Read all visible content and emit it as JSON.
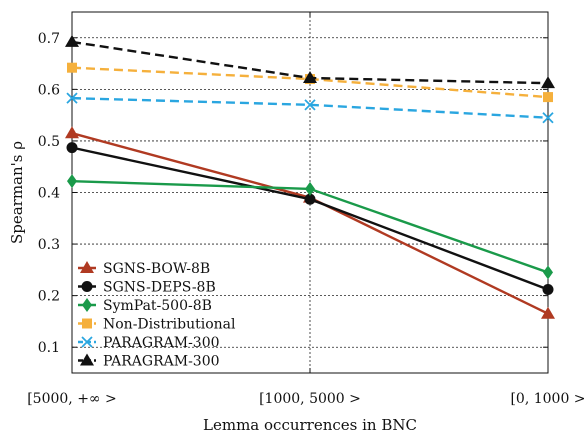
{
  "chart_data": {
    "type": "line",
    "xlabel": "Lemma occurrences in BNC",
    "ylabel": "Spearman's ρ",
    "categories": [
      "[5000, +∞ >",
      "[1000, 5000 >",
      "[0, 1000 >"
    ],
    "ylim": [
      0.05,
      0.75
    ],
    "yticks": [
      0.1,
      0.2,
      0.3,
      0.4,
      0.5,
      0.6,
      0.7
    ],
    "grid": true,
    "legend_position": "bottom-left",
    "series": [
      {
        "name": "SGNS-BOW-8B",
        "values": [
          0.515,
          0.39,
          0.165
        ],
        "color": "#b03a22",
        "marker": "triangle",
        "dashed": false
      },
      {
        "name": "SGNS-DEPS-8B",
        "values": [
          0.487,
          0.387,
          0.212
        ],
        "color": "#111111",
        "marker": "circle",
        "dashed": false
      },
      {
        "name": "SymPat-500-8B",
        "values": [
          0.422,
          0.407,
          0.245
        ],
        "color": "#1a9a4a",
        "marker": "diamond",
        "dashed": false
      },
      {
        "name": "Non-Distributional",
        "values": [
          0.642,
          0.62,
          0.585
        ],
        "color": "#f5b03c",
        "marker": "square",
        "dashed": true
      },
      {
        "name": "PARAGRAM-300",
        "values": [
          0.583,
          0.57,
          0.545
        ],
        "color": "#2aa6e0",
        "marker": "x",
        "dashed": true
      },
      {
        "name": "PARAGRAM-300",
        "values": [
          0.692,
          0.622,
          0.612
        ],
        "color": "#111111",
        "marker": "triangle",
        "dashed": true
      }
    ]
  }
}
